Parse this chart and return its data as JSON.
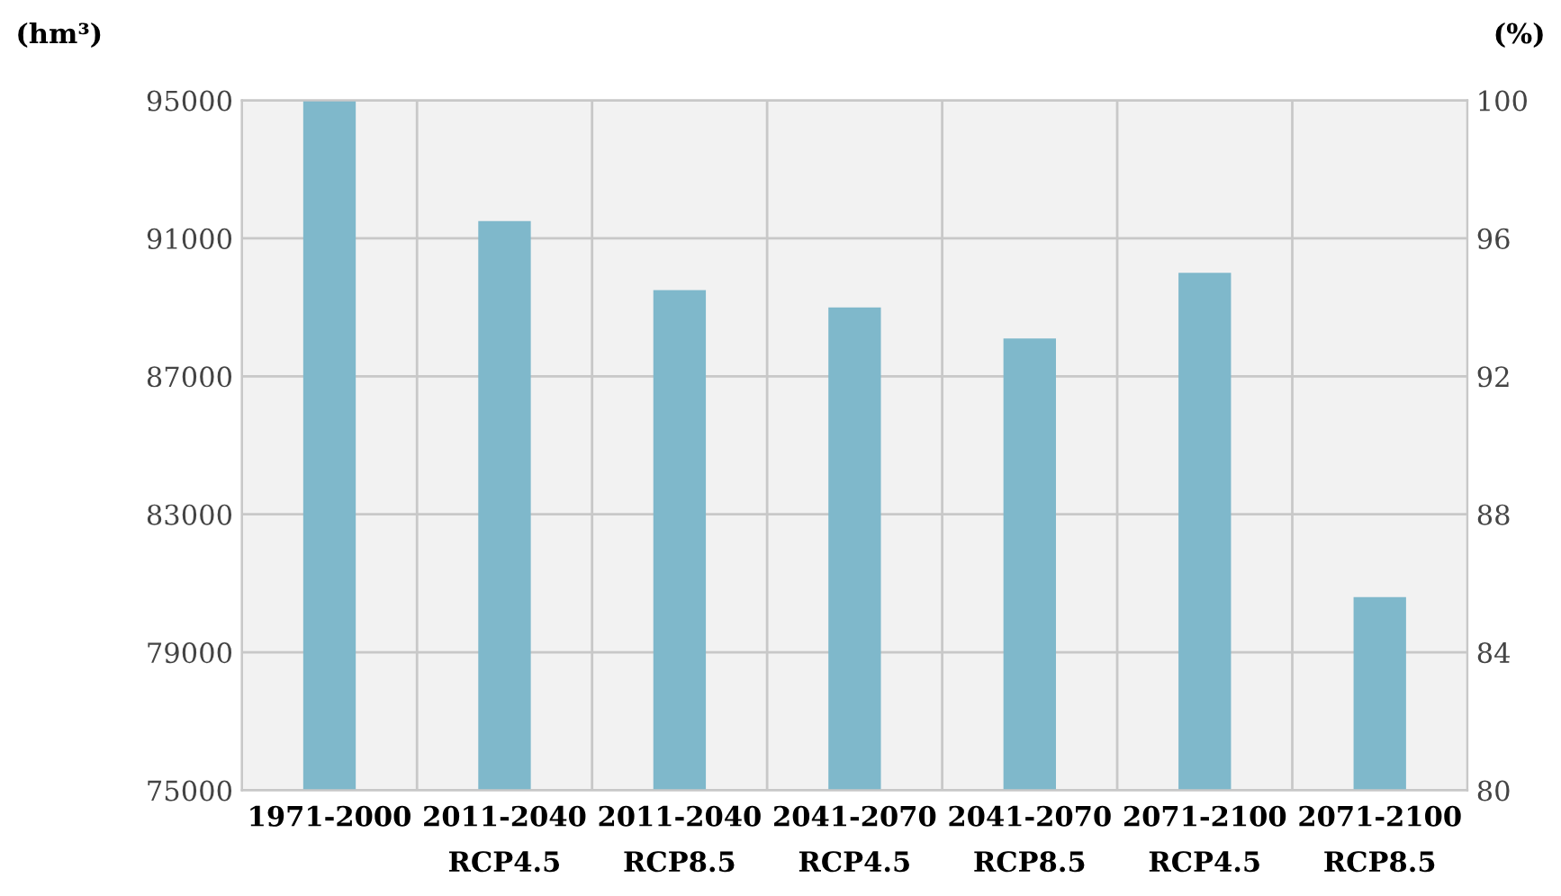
{
  "chart_data": {
    "type": "bar",
    "ylabel": "(hm³)",
    "y2label": "(%)",
    "categories": [
      "1971-2000",
      "2011-2040\nRCP4.5",
      "2011-2040\nRCP8.5",
      "2041-2070\nRCP4.5",
      "2041-2070\nRCP8.5",
      "2071-2100\nRCP4.5",
      "2071-2100\nRCP8.5"
    ],
    "values": [
      95000,
      91500,
      89500,
      89000,
      88100,
      90000,
      80600
    ],
    "color": "#7fb8cb",
    "ylim": [
      75000,
      95000
    ],
    "yticks": [
      75000,
      79000,
      83000,
      87000,
      91000,
      95000
    ],
    "y2lim": [
      80,
      100
    ],
    "y2ticks": [
      80,
      84,
      88,
      92,
      96,
      100
    ],
    "grid": true,
    "legend": false
  }
}
